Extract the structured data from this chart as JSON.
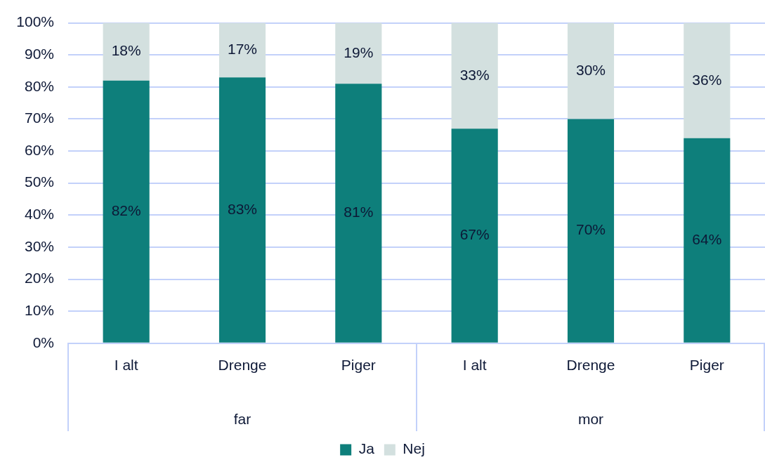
{
  "chart_data": {
    "type": "bar",
    "stacked": true,
    "categories": [
      "I alt",
      "Drenge",
      "Piger",
      "I alt",
      "Drenge",
      "Piger"
    ],
    "series": [
      {
        "name": "Ja",
        "color": "#0e7f7b",
        "values": [
          82,
          83,
          81,
          67,
          70,
          64
        ],
        "value_labels": [
          "82%",
          "83%",
          "81%",
          "67%",
          "70%",
          "64%"
        ]
      },
      {
        "name": "Nej",
        "color": "#d3e0df",
        "values": [
          18,
          17,
          19,
          33,
          30,
          36
        ],
        "value_labels": [
          "18%",
          "17%",
          "19%",
          "33%",
          "30%",
          "36%"
        ]
      }
    ],
    "annotations": [
      "far",
      "mor"
    ],
    "ylim": [
      0,
      100
    ],
    "yticks": [
      {
        "value": 0,
        "label": "0%"
      },
      {
        "value": 10,
        "label": "10%"
      },
      {
        "value": 20,
        "label": "20%"
      },
      {
        "value": 30,
        "label": "30%"
      },
      {
        "value": 40,
        "label": "40%"
      },
      {
        "value": 50,
        "label": "50%"
      },
      {
        "value": 60,
        "label": "60%"
      },
      {
        "value": 70,
        "label": "70%"
      },
      {
        "value": 80,
        "label": "80%"
      },
      {
        "value": 90,
        "label": "90%"
      },
      {
        "value": 100,
        "label": "100%"
      }
    ],
    "grid": "y",
    "legend": "bottom"
  }
}
